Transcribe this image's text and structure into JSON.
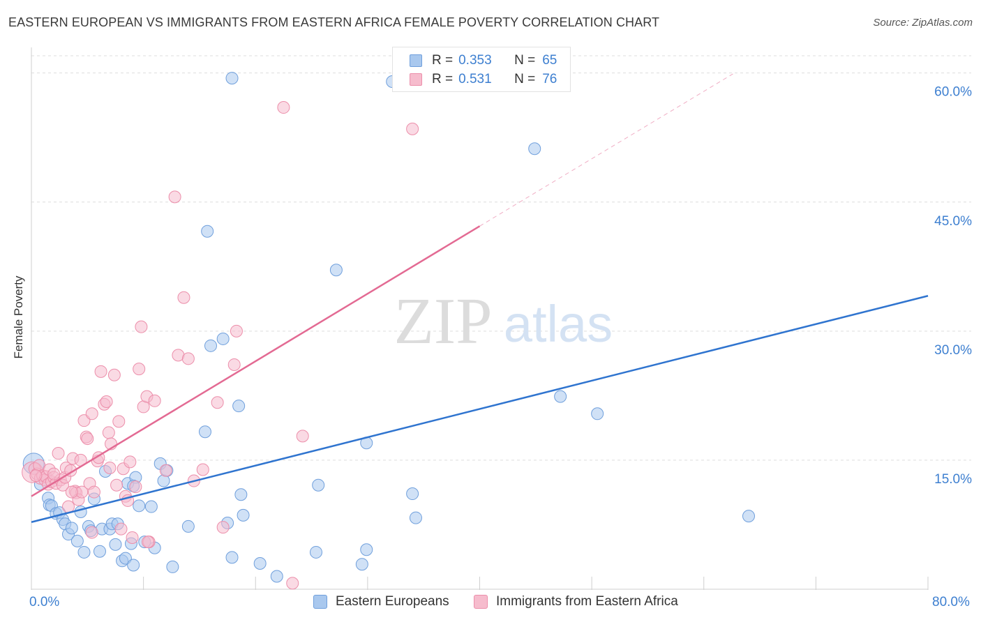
{
  "header": {
    "title": "EASTERN EUROPEAN VS IMMIGRANTS FROM EASTERN AFRICA FEMALE POVERTY CORRELATION CHART",
    "source_prefix": "Source: ",
    "source_name": "ZipAtlas.com"
  },
  "watermark": {
    "zip": "ZIP",
    "atlas": "atlas"
  },
  "colors": {
    "blue_fill": "#a9c8ee",
    "blue_stroke": "#6f9fdc",
    "blue_line": "#2f74cf",
    "pink_fill": "#f6bccd",
    "pink_stroke": "#ec8eaa",
    "pink_line": "#e36a93",
    "tick_text": "#3d7fd0",
    "grid": "#dddddd"
  },
  "legend": {
    "rows": [
      {
        "r_label": "R = ",
        "r_value": "0.353",
        "n_label": "N = ",
        "n_value": "65"
      },
      {
        "r_label": "R = ",
        "r_value": "0.531",
        "n_label": "N = ",
        "n_value": "76"
      }
    ]
  },
  "chart_data": {
    "type": "scatter",
    "title": "EASTERN EUROPEAN VS IMMIGRANTS FROM EASTERN AFRICA FEMALE POVERTY CORRELATION CHART",
    "xlabel": "",
    "ylabel": "Female Poverty",
    "xlim": [
      0,
      80
    ],
    "ylim": [
      0,
      62
    ],
    "x_tick_labels": [
      "0.0%",
      "80.0%"
    ],
    "y_ticks": [
      {
        "value": 15,
        "label": "15.0%"
      },
      {
        "value": 30,
        "label": "30.0%"
      },
      {
        "value": 45,
        "label": "45.0%"
      },
      {
        "value": 60,
        "label": "60.0%"
      }
    ],
    "series": [
      {
        "name": "Eastern Europeans",
        "r": 0.353,
        "n": 65,
        "trend": {
          "x": [
            0,
            80
          ],
          "y": [
            7.8,
            34.1
          ],
          "dashed_to": null
        },
        "points": [
          [
            0.2,
            14.6
          ],
          [
            0.8,
            12.2
          ],
          [
            1.5,
            10.6
          ],
          [
            1.6,
            9.8
          ],
          [
            1.8,
            9.7
          ],
          [
            2.2,
            8.8
          ],
          [
            2.5,
            8.9
          ],
          [
            2.8,
            8.1
          ],
          [
            3.0,
            7.6
          ],
          [
            3.3,
            6.4
          ],
          [
            3.6,
            7.1
          ],
          [
            4.1,
            5.6
          ],
          [
            4.4,
            9.0
          ],
          [
            4.7,
            4.3
          ],
          [
            5.1,
            7.3
          ],
          [
            5.3,
            6.8
          ],
          [
            5.6,
            10.5
          ],
          [
            6.1,
            4.4
          ],
          [
            6.3,
            7.0
          ],
          [
            6.6,
            13.7
          ],
          [
            7.0,
            7.0
          ],
          [
            7.2,
            7.6
          ],
          [
            7.5,
            5.2
          ],
          [
            7.7,
            7.6
          ],
          [
            8.1,
            3.3
          ],
          [
            8.4,
            3.6
          ],
          [
            8.6,
            12.3
          ],
          [
            8.9,
            5.3
          ],
          [
            9.3,
            13.0
          ],
          [
            9.1,
            2.8
          ],
          [
            9.6,
            9.7
          ],
          [
            10.1,
            5.5
          ],
          [
            10.7,
            9.6
          ],
          [
            11.0,
            4.8
          ],
          [
            11.5,
            14.6
          ],
          [
            11.8,
            12.6
          ],
          [
            12.1,
            13.8
          ],
          [
            12.6,
            2.6
          ],
          [
            14.0,
            7.3
          ],
          [
            15.5,
            18.3
          ],
          [
            15.7,
            41.6
          ],
          [
            16.0,
            28.3
          ],
          [
            17.1,
            29.1
          ],
          [
            17.5,
            7.7
          ],
          [
            17.9,
            3.7
          ],
          [
            18.5,
            21.3
          ],
          [
            18.7,
            11.0
          ],
          [
            18.9,
            8.6
          ],
          [
            20.4,
            3.0
          ],
          [
            21.9,
            1.5
          ],
          [
            25.4,
            4.3
          ],
          [
            25.6,
            12.1
          ],
          [
            27.2,
            37.1
          ],
          [
            29.9,
            4.6
          ],
          [
            29.5,
            2.9
          ],
          [
            29.9,
            17.0
          ],
          [
            34.0,
            11.1
          ],
          [
            34.3,
            8.3
          ],
          [
            32.2,
            59.0
          ],
          [
            44.9,
            51.2
          ],
          [
            47.2,
            22.4
          ],
          [
            50.5,
            20.4
          ],
          [
            64.0,
            8.5
          ],
          [
            17.9,
            59.4
          ],
          [
            9.1,
            12.0
          ]
        ]
      },
      {
        "name": "Immigrants from Eastern Africa",
        "r": 0.531,
        "n": 76,
        "trend": {
          "x": [
            0,
            40
          ],
          "y": [
            10.8,
            42.2
          ],
          "dashed_to": {
            "x": 62.6,
            "y": 59.9
          }
        },
        "points": [
          [
            0.1,
            13.6
          ],
          [
            0.3,
            14.0
          ],
          [
            0.5,
            13.4
          ],
          [
            0.7,
            14.4
          ],
          [
            0.8,
            12.9
          ],
          [
            1.0,
            13.2
          ],
          [
            1.2,
            12.7
          ],
          [
            1.3,
            13.1
          ],
          [
            1.5,
            12.2
          ],
          [
            1.6,
            13.9
          ],
          [
            1.8,
            12.5
          ],
          [
            2.0,
            13.0
          ],
          [
            2.2,
            12.3
          ],
          [
            2.4,
            15.8
          ],
          [
            2.6,
            12.7
          ],
          [
            2.8,
            12.1
          ],
          [
            3.0,
            13.0
          ],
          [
            3.1,
            14.1
          ],
          [
            3.3,
            9.6
          ],
          [
            3.5,
            13.8
          ],
          [
            3.7,
            15.2
          ],
          [
            3.9,
            11.4
          ],
          [
            4.0,
            11.2
          ],
          [
            4.2,
            10.4
          ],
          [
            4.4,
            15.0
          ],
          [
            4.5,
            11.3
          ],
          [
            4.7,
            19.6
          ],
          [
            4.9,
            17.7
          ],
          [
            5.0,
            17.5
          ],
          [
            5.2,
            12.3
          ],
          [
            5.4,
            20.4
          ],
          [
            5.6,
            11.3
          ],
          [
            5.9,
            14.9
          ],
          [
            6.0,
            15.3
          ],
          [
            6.2,
            25.3
          ],
          [
            6.5,
            21.5
          ],
          [
            6.7,
            21.8
          ],
          [
            6.9,
            18.2
          ],
          [
            7.0,
            14.1
          ],
          [
            7.1,
            16.9
          ],
          [
            7.4,
            24.9
          ],
          [
            7.6,
            12.1
          ],
          [
            7.8,
            19.5
          ],
          [
            8.0,
            7.0
          ],
          [
            8.2,
            14.0
          ],
          [
            8.4,
            10.8
          ],
          [
            8.6,
            10.3
          ],
          [
            8.8,
            14.8
          ],
          [
            9.0,
            6.0
          ],
          [
            9.3,
            11.9
          ],
          [
            9.6,
            25.6
          ],
          [
            9.8,
            30.5
          ],
          [
            10.0,
            21.2
          ],
          [
            10.3,
            22.4
          ],
          [
            10.5,
            5.5
          ],
          [
            11.0,
            21.9
          ],
          [
            12.0,
            13.8
          ],
          [
            12.8,
            45.6
          ],
          [
            13.1,
            27.2
          ],
          [
            13.6,
            33.9
          ],
          [
            14.0,
            26.8
          ],
          [
            14.5,
            12.6
          ],
          [
            15.3,
            13.9
          ],
          [
            16.6,
            21.7
          ],
          [
            17.1,
            7.2
          ],
          [
            18.1,
            26.1
          ],
          [
            18.3,
            30.0
          ],
          [
            22.5,
            56.0
          ],
          [
            24.2,
            17.8
          ],
          [
            34.0,
            53.5
          ],
          [
            23.3,
            0.7
          ],
          [
            10.4,
            5.5
          ],
          [
            5.4,
            6.6
          ],
          [
            3.6,
            11.3
          ],
          [
            2.0,
            13.4
          ],
          [
            0.4,
            13.2
          ]
        ]
      }
    ]
  },
  "bottom_legend": {
    "items": [
      {
        "label": "Eastern Europeans"
      },
      {
        "label": "Immigrants from Eastern Africa"
      }
    ]
  }
}
